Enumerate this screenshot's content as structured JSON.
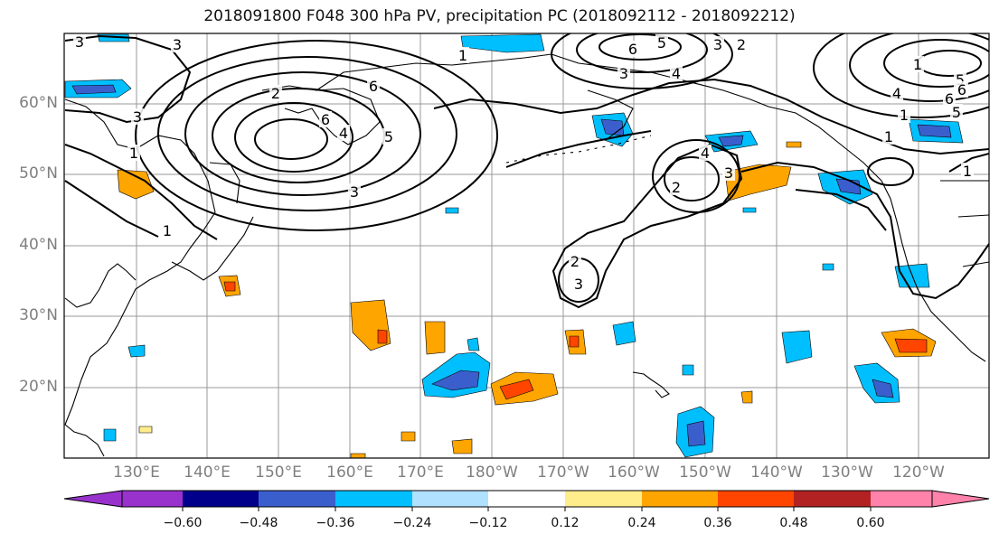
{
  "title": "2018091800 F048 300 hPa PV, precipitation PC (2018092112 - 2018092212)",
  "map": {
    "lon_labels": [
      "130°E",
      "140°E",
      "150°E",
      "160°E",
      "170°E",
      "180°W",
      "170°W",
      "160°W",
      "150°W",
      "140°W",
      "130°W",
      "120°W"
    ],
    "lat_labels": [
      "60°N",
      "50°N",
      "40°N",
      "30°N",
      "20°N"
    ],
    "pv_contour_labels": [
      "1",
      "2",
      "3",
      "4",
      "5",
      "6"
    ],
    "colors": {
      "land_outline": "#000000",
      "grid": "#999999",
      "contour": "#000000"
    }
  },
  "colorbar": {
    "ticks": [
      "−0.60",
      "−0.48",
      "−0.36",
      "−0.24",
      "−0.12",
      "0.12",
      "0.24",
      "0.36",
      "0.48",
      "0.60"
    ],
    "colors": [
      "#9932cc",
      "#00008b",
      "#3a5fcd",
      "#00bfff",
      "#b0e2ff",
      "#ffffff",
      "#ffec8b",
      "#ffa500",
      "#ff4500",
      "#b22222",
      "#ff82ab"
    ]
  }
}
